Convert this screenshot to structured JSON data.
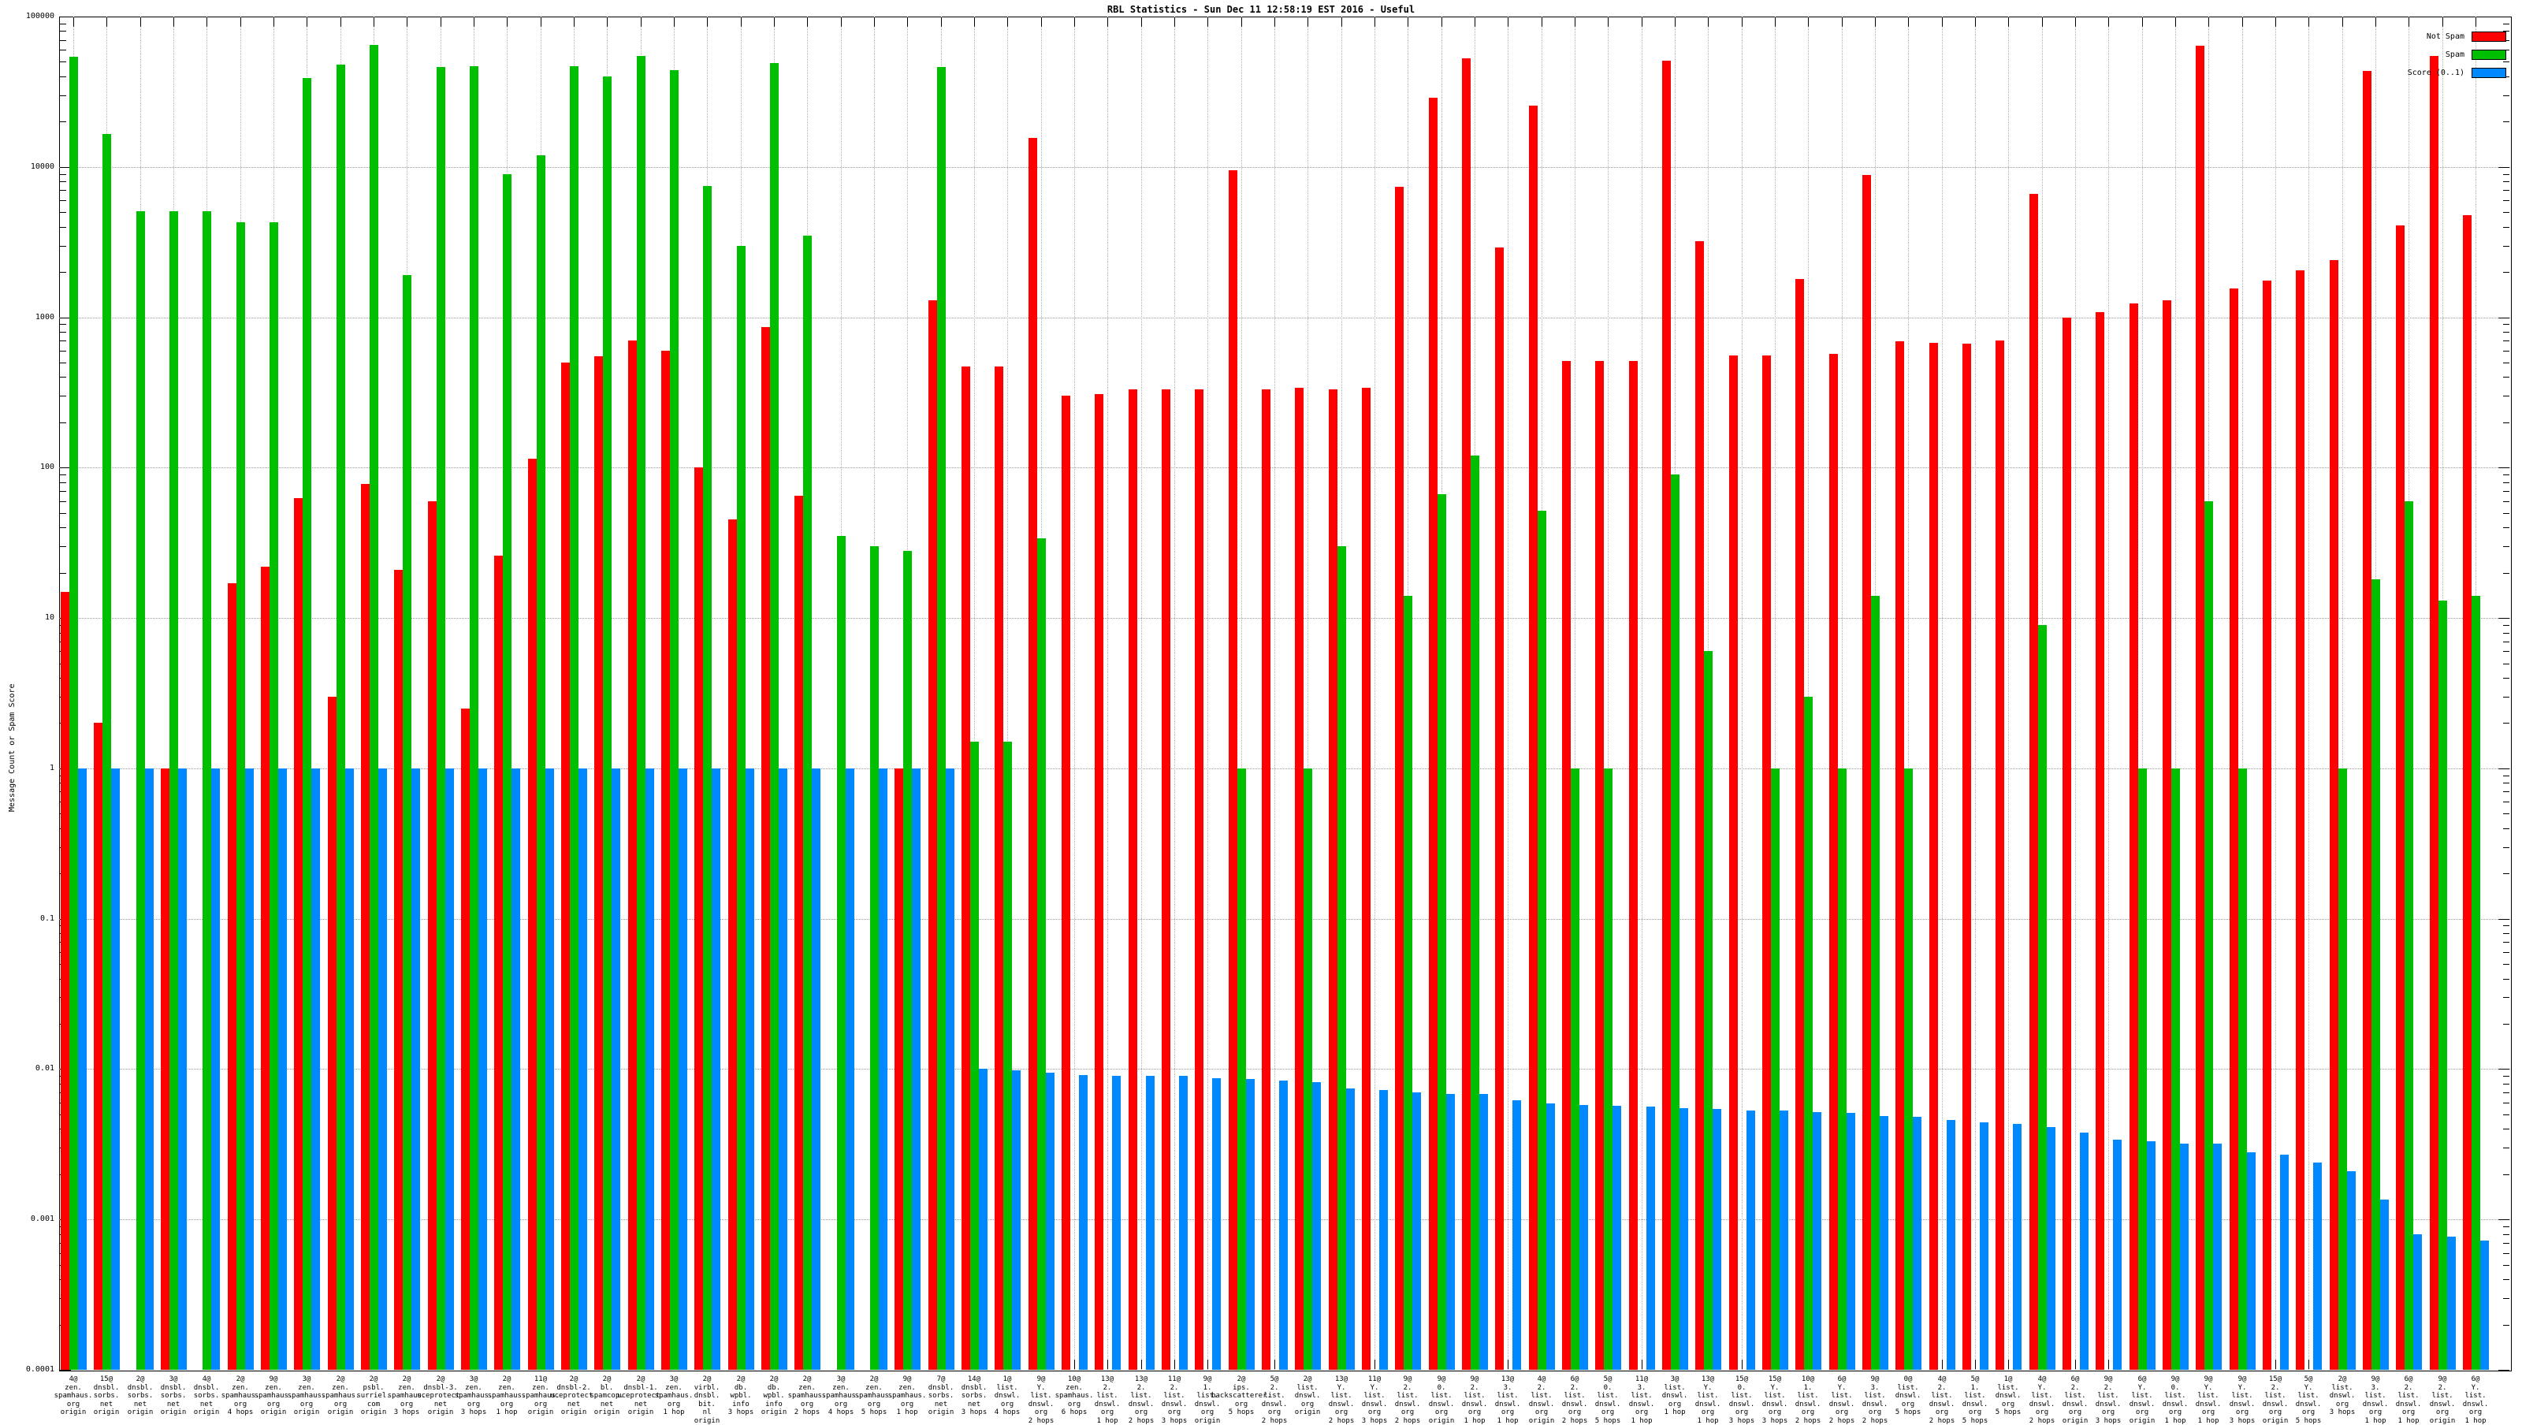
{
  "chart_data": {
    "type": "bar",
    "title": "RBL Statistics - Sun Dec 11 12:58:19 EST 2016 - Useful",
    "ylabel": "Message Count or Spam Score",
    "xlabel": "",
    "y_scale": "log10",
    "ylim": [
      0.0001,
      100000
    ],
    "grid": true,
    "legend_position": "top-right",
    "ytick_labels": [
      "100000",
      "10000",
      "1000",
      "100",
      "10",
      "1",
      "0.1",
      "0.01",
      "0.001",
      "0.0001"
    ],
    "series": [
      {
        "name": "Not Spam",
        "color": "#ff0000",
        "values": [
          15,
          2,
          0,
          1,
          0,
          17,
          22,
          63,
          3,
          78,
          21,
          60,
          2.5,
          26,
          115,
          500,
          550,
          700,
          600,
          100,
          45,
          860,
          65,
          0,
          0,
          1,
          1300,
          470,
          470,
          15500,
          300,
          310,
          330,
          330,
          330,
          9500,
          330,
          340,
          330,
          340,
          7400,
          29000,
          53000,
          2900,
          25500,
          510,
          510,
          510,
          51000,
          3200,
          560,
          560,
          1800,
          570,
          8800,
          690,
          680,
          670,
          700,
          6600,
          1000,
          1080,
          1240,
          1300,
          64000,
          1560,
          1750,
          2050,
          2400,
          43500,
          4100,
          55000,
          4800
        ]
      },
      {
        "name": "Spam",
        "color": "#00bf00",
        "values": [
          54000,
          16500,
          5100,
          5100,
          5100,
          4300,
          4300,
          39000,
          48000,
          65000,
          1900,
          46000,
          47000,
          9000,
          12000,
          47000,
          40000,
          55000,
          44000,
          7500,
          3000,
          49000,
          3500,
          35,
          30,
          28,
          46000,
          1.5,
          1.5,
          34,
          0,
          0,
          0,
          0,
          0,
          1,
          0,
          1,
          30,
          0,
          14,
          67,
          120,
          0,
          52,
          1,
          1,
          0,
          90,
          6,
          0,
          1,
          3,
          1,
          14,
          1,
          0,
          0,
          0,
          9,
          0,
          0,
          1,
          1,
          60,
          1,
          0,
          0,
          1,
          18,
          60,
          13,
          14
        ]
      },
      {
        "name": "Score (0..1)",
        "color": "#0088ff",
        "values": [
          1,
          1,
          1,
          1,
          1,
          1,
          1,
          1,
          1,
          1,
          1,
          1,
          1,
          1,
          1,
          1,
          1,
          1,
          1,
          1,
          1,
          1,
          1,
          1,
          1,
          1,
          1,
          0.01,
          0.0098,
          0.0095,
          0.0091,
          0.009,
          0.009,
          0.009,
          0.0087,
          0.0086,
          0.0084,
          0.0082,
          0.0074,
          0.0073,
          0.007,
          0.0068,
          0.0068,
          0.0062,
          0.0059,
          0.0058,
          0.0057,
          0.0056,
          0.0055,
          0.0054,
          0.0053,
          0.0053,
          0.0052,
          0.0051,
          0.0049,
          0.0048,
          0.0046,
          0.0044,
          0.0043,
          0.0041,
          0.0038,
          0.0034,
          0.0033,
          0.0032,
          0.0032,
          0.0028,
          0.0027,
          0.0024,
          0.0021,
          0.00135,
          0.0008,
          0.00077,
          0.00072
        ]
      }
    ],
    "categories": [
      "4@zen.spamhaus.org origin",
      "15@dnsbl.sorbs.net origin",
      "2@dnsbl.sorbs.net origin",
      "3@dnsbl.sorbs.net origin",
      "4@dnsbl.sorbs.net origin",
      "2@zen.spamhaus.org 4 hops",
      "9@zen.spamhaus.org origin",
      "3@zen.spamhaus.org origin",
      "2@zen.spamhaus.org origin",
      "2@psbl.surriel.com origin",
      "2@zen.spamhaus.org 3 hops",
      "2@dnsbl-3.uceprotect.net origin",
      "3@zen.spamhaus.org 3 hops",
      "2@zen.spamhaus.org 1 hop",
      "11@zen.spamhaus.org origin",
      "2@dnsbl-2.uceprotect.net origin",
      "2@bl.spamcop.net origin",
      "2@dnsbl-1.uceprotect.net origin",
      "3@zen.spamhaus.org 1 hop",
      "2@virbl.dnsbl.bit.nl origin",
      "2@db.wpbl.info 3 hops",
      "2@db.wpbl.info origin",
      "2@zen.spamhaus.org 2 hops",
      "3@zen.spamhaus.org 4 hops",
      "2@zen.spamhaus.org 5 hops",
      "9@zen.spamhaus.org 1 hop",
      "7@dnsbl.sorbs.net origin",
      "14@dnsbl.sorbs.net 3 hops",
      "1@list.dnswl.org 4 hops",
      "9@Y.list.dnswl.org 2 hops",
      "10@zen.spamhaus.org 6 hops",
      "13@2.list.dnswl.org 1 hop",
      "13@2.list.dnswl.org 2 hops",
      "11@2.list.dnswl.org 3 hops",
      "9@1.list.dnswl.org origin",
      "2@ips.backscatterer.org 5 hops",
      "5@2.list.dnswl.org 2 hops",
      "2@list.dnswl.org origin",
      "13@Y.list.dnswl.org 2 hops",
      "11@Y.list.dnswl.org 3 hops",
      "9@2.list.dnswl.org 2 hops",
      "9@0.list.dnswl.org origin",
      "9@2.list.dnswl.org 1 hop",
      "13@3.list.dnswl.org 1 hop",
      "4@2.list.dnswl.org origin",
      "6@2.list.dnswl.org 2 hops",
      "5@0.list.dnswl.org 5 hops",
      "11@3.list.dnswl.org 1 hop",
      "3@list.dnswl.org 1 hop",
      "13@Y.list.dnswl.org 1 hop",
      "15@0.list.dnswl.org 3 hops",
      "15@Y.list.dnswl.org 3 hops",
      "10@1.list.dnswl.org 2 hops",
      "6@Y.list.dnswl.org 2 hops",
      "9@3.list.dnswl.org 2 hops",
      "0@list.dnswl.org 5 hops",
      "4@2.list.dnswl.org 2 hops",
      "5@1.list.dnswl.org 5 hops",
      "1@list.dnswl.org 5 hops",
      "4@Y.list.dnswl.org 2 hops",
      "6@2.list.dnswl.org origin",
      "9@2.list.dnswl.org 3 hops",
      "6@Y.list.dnswl.org origin",
      "9@0.list.dnswl.org 1 hop",
      "9@Y.list.dnswl.org 1 hop",
      "9@Y.list.dnswl.org 3 hops",
      "15@2.list.dnswl.org origin",
      "5@Y.list.dnswl.org 5 hops",
      "2@list.dnswl.org 3 hops",
      "9@3.list.dnswl.org 1 hop",
      "6@2.list.dnswl.org 1 hop",
      "9@2.list.dnswl.org origin",
      "6@Y.list.dnswl.org 1 hop"
    ],
    "category_label_lines": [
      [
        "4@",
        "zen.",
        "spamhaus.",
        "org",
        "origin"
      ],
      [
        "15@",
        "dnsbl.",
        "sorbs.",
        "net",
        "origin"
      ],
      [
        "2@",
        "dnsbl.",
        "sorbs.",
        "net",
        "origin"
      ],
      [
        "3@",
        "dnsbl.",
        "sorbs.",
        "net",
        "origin"
      ],
      [
        "4@",
        "dnsbl.",
        "sorbs.",
        "net",
        "origin"
      ],
      [
        "2@",
        "zen.",
        "spamhaus.",
        "org",
        "4 hops"
      ],
      [
        "9@",
        "zen.",
        "spamhaus.",
        "org",
        "origin"
      ],
      [
        "3@",
        "zen.",
        "spamhaus.",
        "org",
        "origin"
      ],
      [
        "2@",
        "zen.",
        "spamhaus.",
        "org",
        "origin"
      ],
      [
        "2@",
        "psbl.",
        "surriel.",
        "com",
        "origin"
      ],
      [
        "2@",
        "zen.",
        "spamhaus.",
        "org",
        "3 hops"
      ],
      [
        "2@",
        "dnsbl-3.",
        "uceprotect.",
        "net",
        "origin"
      ],
      [
        "3@",
        "zen.",
        "spamhaus.",
        "org",
        "3 hops"
      ],
      [
        "2@",
        "zen.",
        "spamhaus.",
        "org",
        "1 hop"
      ],
      [
        "11@",
        "zen.",
        "spamhaus.",
        "org",
        "origin"
      ],
      [
        "2@",
        "dnsbl-2.",
        "uceprotect.",
        "net",
        "origin"
      ],
      [
        "2@",
        "bl.",
        "spamcop.",
        "net",
        "origin"
      ],
      [
        "2@",
        "dnsbl-1.",
        "uceprotect.",
        "net",
        "origin"
      ],
      [
        "3@",
        "zen.",
        "spamhaus.",
        "org",
        "1 hop"
      ],
      [
        "2@",
        "virbl.",
        "dnsbl.",
        "bit.",
        "nl",
        "origin"
      ],
      [
        "2@",
        "db.",
        "wpbl.",
        "info",
        "3 hops"
      ],
      [
        "2@",
        "db.",
        "wpbl.",
        "info",
        "origin"
      ],
      [
        "2@",
        "zen.",
        "spamhaus.",
        "org",
        "2 hops"
      ],
      [
        "3@",
        "zen.",
        "spamhaus.",
        "org",
        "4 hops"
      ],
      [
        "2@",
        "zen.",
        "spamhaus.",
        "org",
        "5 hops"
      ],
      [
        "9@",
        "zen.",
        "spamhaus.",
        "org",
        "1 hop"
      ],
      [
        "7@",
        "dnsbl.",
        "sorbs.",
        "net",
        "origin"
      ],
      [
        "14@",
        "dnsbl.",
        "sorbs.",
        "net",
        "3 hops"
      ],
      [
        "1@",
        "list.",
        "dnswl.",
        "org",
        "4 hops"
      ],
      [
        "9@",
        "Y.",
        "list.",
        "dnswl.",
        "org",
        "2 hops"
      ],
      [
        "10@",
        "zen.",
        "spamhaus.",
        "org",
        "6 hops"
      ],
      [
        "13@",
        "2.",
        "list.",
        "dnswl.",
        "org",
        "1 hop"
      ],
      [
        "13@",
        "2.",
        "list.",
        "dnswl.",
        "org",
        "2 hops"
      ],
      [
        "11@",
        "2.",
        "list.",
        "dnswl.",
        "org",
        "3 hops"
      ],
      [
        "9@",
        "1.",
        "list.",
        "dnswl.",
        "org",
        "origin"
      ],
      [
        "2@",
        "ips.",
        "backscatterer.",
        "org",
        "5 hops"
      ],
      [
        "5@",
        "2.",
        "list.",
        "dnswl.",
        "org",
        "2 hops"
      ],
      [
        "2@",
        "list.",
        "dnswl.",
        "org",
        "origin"
      ],
      [
        "13@",
        "Y.",
        "list.",
        "dnswl.",
        "org",
        "2 hops"
      ],
      [
        "11@",
        "Y.",
        "list.",
        "dnswl.",
        "org",
        "3 hops"
      ],
      [
        "9@",
        "2.",
        "list.",
        "dnswl.",
        "org",
        "2 hops"
      ],
      [
        "9@",
        "0.",
        "list.",
        "dnswl.",
        "org",
        "origin"
      ],
      [
        "9@",
        "2.",
        "list.",
        "dnswl.",
        "org",
        "1 hop"
      ],
      [
        "13@",
        "3.",
        "list.",
        "dnswl.",
        "org",
        "1 hop"
      ],
      [
        "4@",
        "2.",
        "list.",
        "dnswl.",
        "org",
        "origin"
      ],
      [
        "6@",
        "2.",
        "list.",
        "dnswl.",
        "org",
        "2 hops"
      ],
      [
        "5@",
        "0.",
        "list.",
        "dnswl.",
        "org",
        "5 hops"
      ],
      [
        "11@",
        "3.",
        "list.",
        "dnswl.",
        "org",
        "1 hop"
      ],
      [
        "3@",
        "list.",
        "dnswl.",
        "org",
        "1 hop"
      ],
      [
        "13@",
        "Y.",
        "list.",
        "dnswl.",
        "org",
        "1 hop"
      ],
      [
        "15@",
        "0.",
        "list.",
        "dnswl.",
        "org",
        "3 hops"
      ],
      [
        "15@",
        "Y.",
        "list.",
        "dnswl.",
        "org",
        "3 hops"
      ],
      [
        "10@",
        "1.",
        "list.",
        "dnswl.",
        "org",
        "2 hops"
      ],
      [
        "6@",
        "Y.",
        "list.",
        "dnswl.",
        "org",
        "2 hops"
      ],
      [
        "9@",
        "3.",
        "list.",
        "dnswl.",
        "org",
        "2 hops"
      ],
      [
        "0@",
        "list.",
        "dnswl.",
        "org",
        "5 hops"
      ],
      [
        "4@",
        "2.",
        "list.",
        "dnswl.",
        "org",
        "2 hops"
      ],
      [
        "5@",
        "1.",
        "list.",
        "dnswl.",
        "org",
        "5 hops"
      ],
      [
        "1@",
        "list.",
        "dnswl.",
        "org",
        "5 hops"
      ],
      [
        "4@",
        "Y.",
        "list.",
        "dnswl.",
        "org",
        "2 hops"
      ],
      [
        "6@",
        "2.",
        "list.",
        "dnswl.",
        "org",
        "origin"
      ],
      [
        "9@",
        "2.",
        "list.",
        "dnswl.",
        "org",
        "3 hops"
      ],
      [
        "6@",
        "Y.",
        "list.",
        "dnswl.",
        "org",
        "origin"
      ],
      [
        "9@",
        "0.",
        "list.",
        "dnswl.",
        "org",
        "1 hop"
      ],
      [
        "9@",
        "Y.",
        "list.",
        "dnswl.",
        "org",
        "1 hop"
      ],
      [
        "9@",
        "Y.",
        "list.",
        "dnswl.",
        "org",
        "3 hops"
      ],
      [
        "15@",
        "2.",
        "list.",
        "dnswl.",
        "org",
        "origin"
      ],
      [
        "5@",
        "Y.",
        "list.",
        "dnswl.",
        "org",
        "5 hops"
      ],
      [
        "2@",
        "list.",
        "dnswl.",
        "org",
        "3 hops"
      ],
      [
        "9@",
        "3.",
        "list.",
        "dnswl.",
        "org",
        "1 hop"
      ],
      [
        "6@",
        "2.",
        "list.",
        "dnswl.",
        "org",
        "1 hop"
      ],
      [
        "9@",
        "2.",
        "list.",
        "dnswl.",
        "org",
        "origin"
      ],
      [
        "6@",
        "Y.",
        "list.",
        "dnswl.",
        "org",
        "1 hop"
      ]
    ]
  }
}
